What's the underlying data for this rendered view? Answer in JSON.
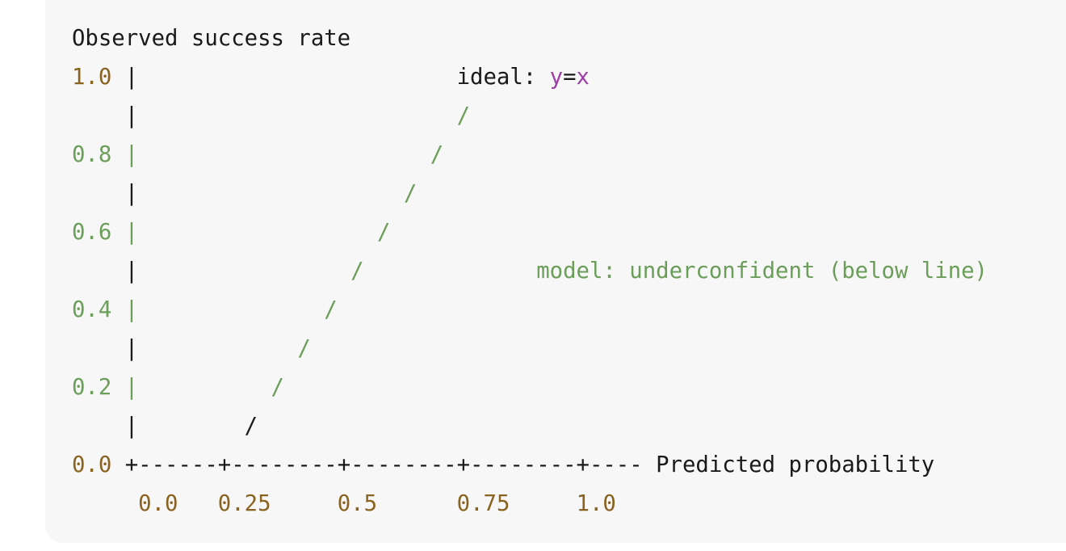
{
  "colors": {
    "background": "#ffffff",
    "panel": "#f7f7f7",
    "text": "#1a1a1a",
    "number": "#8a6320",
    "green": "#6b9e59",
    "purple": "#9c3fa6"
  },
  "block": {
    "y_title": "Observed success rate",
    "y_ticks": [
      "1.0",
      "0.8",
      "0.6",
      "0.4",
      "0.2",
      "0.0"
    ],
    "axis_bar": "|",
    "slash": "/",
    "ideal_label": "ideal: ",
    "ideal_y": "y",
    "ideal_eq": "=",
    "ideal_x": "x",
    "model_label": "model: underconfident (below line)",
    "x_axis": "+------+--------+--------+--------+----",
    "x_title": "Predicted probability",
    "x_ticks": [
      "0.0",
      "0.25",
      "0.5",
      "0.75",
      "1.0"
    ]
  }
}
